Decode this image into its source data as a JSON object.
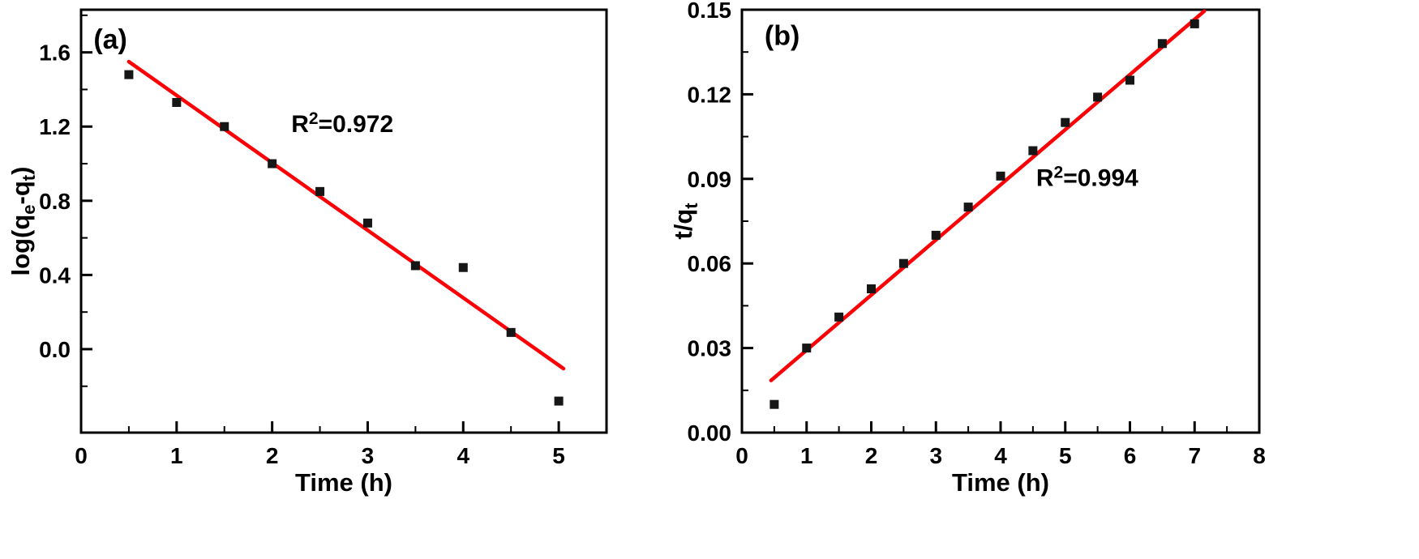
{
  "figure": {
    "background": "#ffffff",
    "frame_color": "#000000",
    "marker_color": "#161616",
    "fit_line_color": "#fb0207"
  },
  "chart_data": [
    {
      "id": "a",
      "type": "scatter",
      "panel_label": "(a)",
      "xlabel": "Time (h)",
      "ylabel": "log(qe-qt)",
      "ylabel_parts": [
        {
          "t": "log(q"
        },
        {
          "t": "e",
          "style": "sub"
        },
        {
          "t": "-q"
        },
        {
          "t": "t",
          "style": "sub"
        },
        {
          "t": ")"
        }
      ],
      "annotation": {
        "prefix": "R",
        "sup": "2",
        "suffix": "=0.972",
        "xy": [
          2.2,
          1.17
        ]
      },
      "r_squared": 0.972,
      "xlim": [
        0,
        5.5
      ],
      "ylim": [
        -0.45,
        1.83
      ],
      "xticks": [
        0,
        1,
        2,
        3,
        4,
        5
      ],
      "xtick_labels": [
        "0",
        "1",
        "2",
        "3",
        "4",
        "5"
      ],
      "yticks": [
        0.0,
        0.4,
        0.8,
        1.2,
        1.6
      ],
      "ytick_labels": [
        "0.0",
        "0.4",
        "0.8",
        "1.2",
        "1.6"
      ],
      "points": [
        [
          0.5,
          1.48
        ],
        [
          1.0,
          1.33
        ],
        [
          1.5,
          1.2
        ],
        [
          2.0,
          1.0
        ],
        [
          2.5,
          0.85
        ],
        [
          3.0,
          0.68
        ],
        [
          3.5,
          0.45
        ],
        [
          4.0,
          0.44
        ],
        [
          4.5,
          0.09
        ],
        [
          5.0,
          -0.28
        ]
      ],
      "fit_line": {
        "x1": 0.5,
        "y1": 1.55,
        "x2": 5.05,
        "y2": -0.105
      },
      "panel_label_xy": [
        0.13,
        1.62
      ],
      "grid": false,
      "legend": "none"
    },
    {
      "id": "b",
      "type": "scatter",
      "panel_label": "(b)",
      "xlabel": "Time (h)",
      "ylabel": "t/qt",
      "ylabel_parts": [
        {
          "t": "t/q"
        },
        {
          "t": "t",
          "style": "sub"
        }
      ],
      "annotation": {
        "prefix": "R",
        "sup": "2",
        "suffix": "=0.994",
        "xy": [
          4.55,
          0.0875
        ]
      },
      "r_squared": 0.994,
      "xlim": [
        0,
        8
      ],
      "ylim": [
        0.0,
        0.15
      ],
      "xticks": [
        0,
        1,
        2,
        3,
        4,
        5,
        6,
        7,
        8
      ],
      "xtick_labels": [
        "0",
        "1",
        "2",
        "3",
        "4",
        "5",
        "6",
        "7",
        "8"
      ],
      "yticks": [
        0.0,
        0.03,
        0.06,
        0.09,
        0.12,
        0.15
      ],
      "ytick_labels": [
        "0.00",
        "0.03",
        "0.06",
        "0.09",
        "0.12",
        "0.15"
      ],
      "points": [
        [
          0.5,
          0.01
        ],
        [
          1.0,
          0.03
        ],
        [
          1.5,
          0.041
        ],
        [
          2.0,
          0.051
        ],
        [
          2.5,
          0.06
        ],
        [
          3.0,
          0.07
        ],
        [
          3.5,
          0.08
        ],
        [
          4.0,
          0.091
        ],
        [
          4.5,
          0.1
        ],
        [
          5.0,
          0.11
        ],
        [
          5.5,
          0.119
        ],
        [
          6.0,
          0.125
        ],
        [
          6.5,
          0.138
        ],
        [
          7.0,
          0.145
        ]
      ],
      "fit_line": {
        "x1": 0.45,
        "y1": 0.0185,
        "x2": 7.15,
        "y2": 0.1495
      },
      "panel_label_xy": [
        0.35,
        0.1375
      ],
      "grid": false,
      "legend": "none"
    }
  ]
}
